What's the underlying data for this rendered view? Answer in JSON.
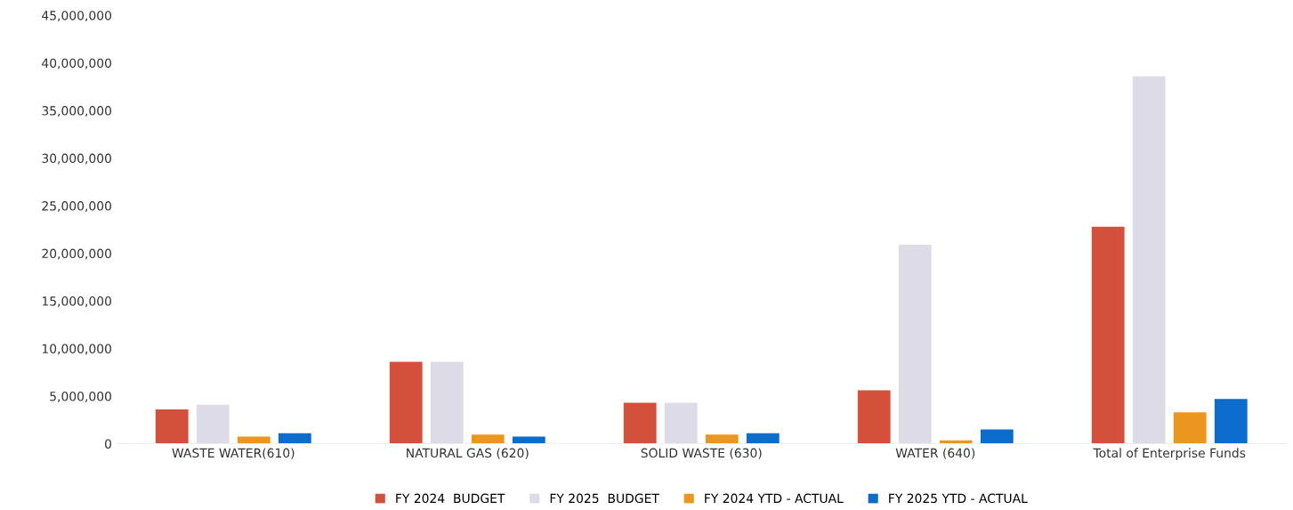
{
  "chart_data": {
    "type": "bar",
    "categories": [
      "WASTE WATER(610)",
      "NATURAL GAS (620)",
      "SOLID WASTE (630)",
      "WATER (640)",
      "Total of Enterprise Funds"
    ],
    "series": [
      {
        "name": "FY 2024  BUDGET",
        "color": "#d5503a",
        "values": [
          3600000,
          8600000,
          4300000,
          5600000,
          22800000
        ]
      },
      {
        "name": "FY 2025  BUDGET",
        "color": "#dcdbe6",
        "values": [
          4100000,
          8600000,
          4300000,
          20900000,
          38600000
        ]
      },
      {
        "name": "FY 2024 YTD - ACTUAL",
        "color": "#eb961f",
        "values": [
          750000,
          950000,
          950000,
          350000,
          3300000
        ]
      },
      {
        "name": "FY 2025 YTD - ACTUAL",
        "color": "#0b6ccc",
        "values": [
          1100000,
          750000,
          1100000,
          1500000,
          4700000
        ]
      }
    ],
    "ylim": [
      0,
      45000000
    ],
    "yticks": [
      {
        "value": 0,
        "label": "0"
      },
      {
        "value": 5000000,
        "label": "5,000,000"
      },
      {
        "value": 10000000,
        "label": "10,000,000"
      },
      {
        "value": 15000000,
        "label": "15,000,000"
      },
      {
        "value": 20000000,
        "label": "20,000,000"
      },
      {
        "value": 25000000,
        "label": "25,000,000"
      },
      {
        "value": 30000000,
        "label": "30,000,000"
      },
      {
        "value": 35000000,
        "label": "35,000,000"
      },
      {
        "value": 40000000,
        "label": "40,000,000"
      },
      {
        "value": 45000000,
        "label": "45,000,000"
      }
    ],
    "legend": "bottom"
  }
}
